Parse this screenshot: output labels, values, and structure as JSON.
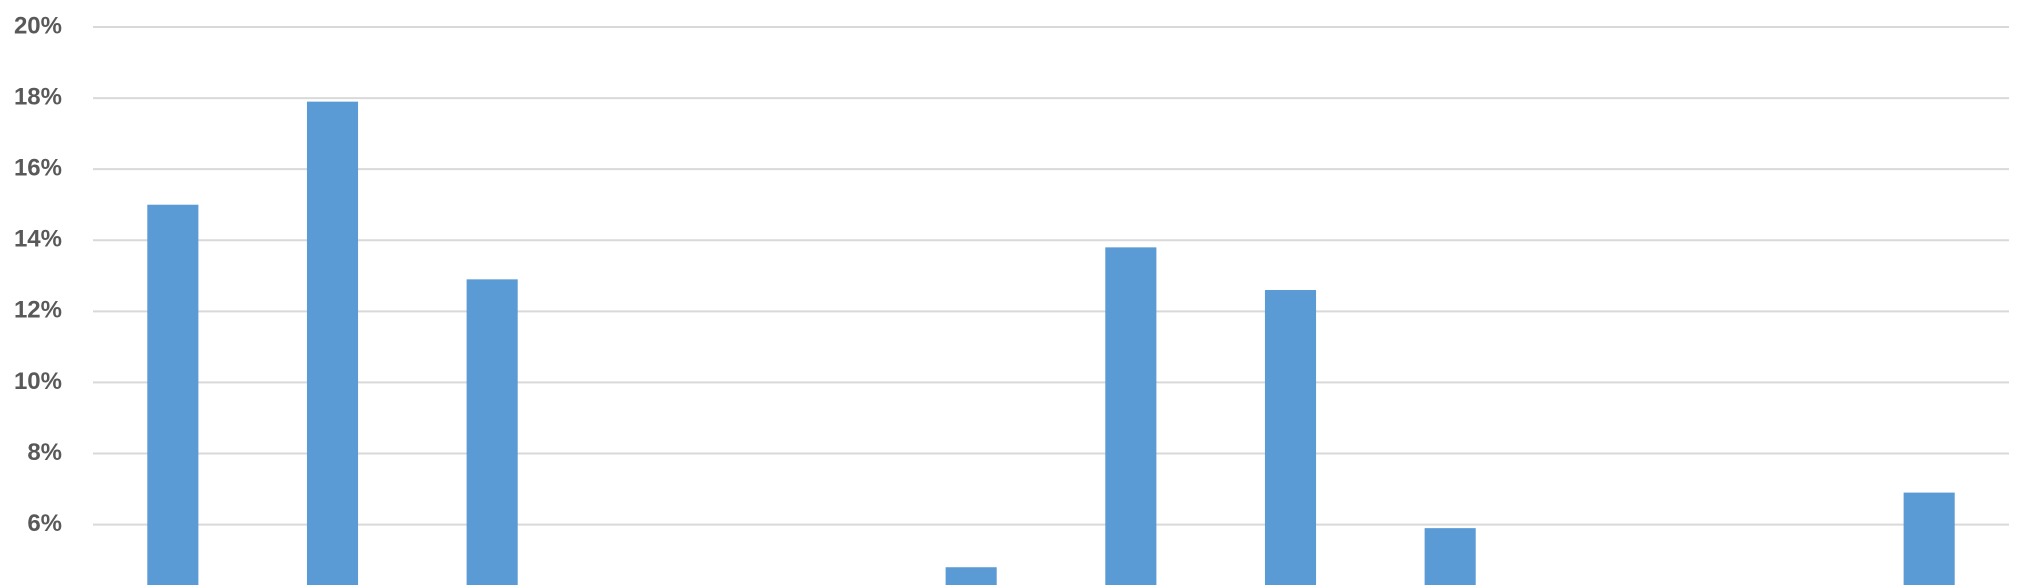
{
  "chart_data": {
    "type": "bar",
    "categories": [
      null,
      null,
      null,
      null,
      null,
      null,
      null,
      null,
      null,
      null,
      null,
      null
    ],
    "values": [
      15.0,
      17.9,
      12.9,
      null,
      null,
      4.8,
      13.8,
      12.6,
      5.9,
      null,
      null,
      6.9
    ],
    "color": "#5b9bd5",
    "ylim": [
      4.3,
      20
    ],
    "yticks": [
      {
        "value": 6,
        "label": "6%"
      },
      {
        "value": 8,
        "label": "8%"
      },
      {
        "value": 10,
        "label": "10%"
      },
      {
        "value": 12,
        "label": "12%"
      },
      {
        "value": 14,
        "label": "14%"
      },
      {
        "value": 16,
        "label": "16%"
      },
      {
        "value": 18,
        "label": "18%"
      },
      {
        "value": 20,
        "label": "20%"
      }
    ],
    "grid": true
  }
}
